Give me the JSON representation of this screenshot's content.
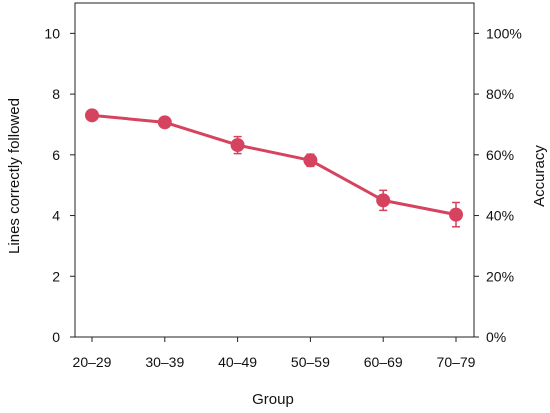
{
  "chart_data": {
    "type": "line",
    "title": "",
    "xlabel": "Group",
    "ylabel": "Lines correctly followed",
    "ylabel_right": "Accuracy",
    "categories": [
      "20–29",
      "30–39",
      "40–49",
      "50–59",
      "60–69",
      "70–79"
    ],
    "ylim": [
      0,
      11
    ],
    "y_ticks": [
      "0",
      "2",
      "4",
      "6",
      "8",
      "10"
    ],
    "y_right_ticks": [
      "0%",
      "20%",
      "40%",
      "60%",
      "80%",
      "100%"
    ],
    "series": [
      {
        "values": [
          7.3,
          7.07,
          6.32,
          5.82,
          4.5,
          4.03
        ],
        "error": [
          0.15,
          0.12,
          0.28,
          0.2,
          0.33,
          0.4
        ]
      }
    ],
    "grid": false,
    "legend": "none",
    "color": "#d6435f"
  }
}
